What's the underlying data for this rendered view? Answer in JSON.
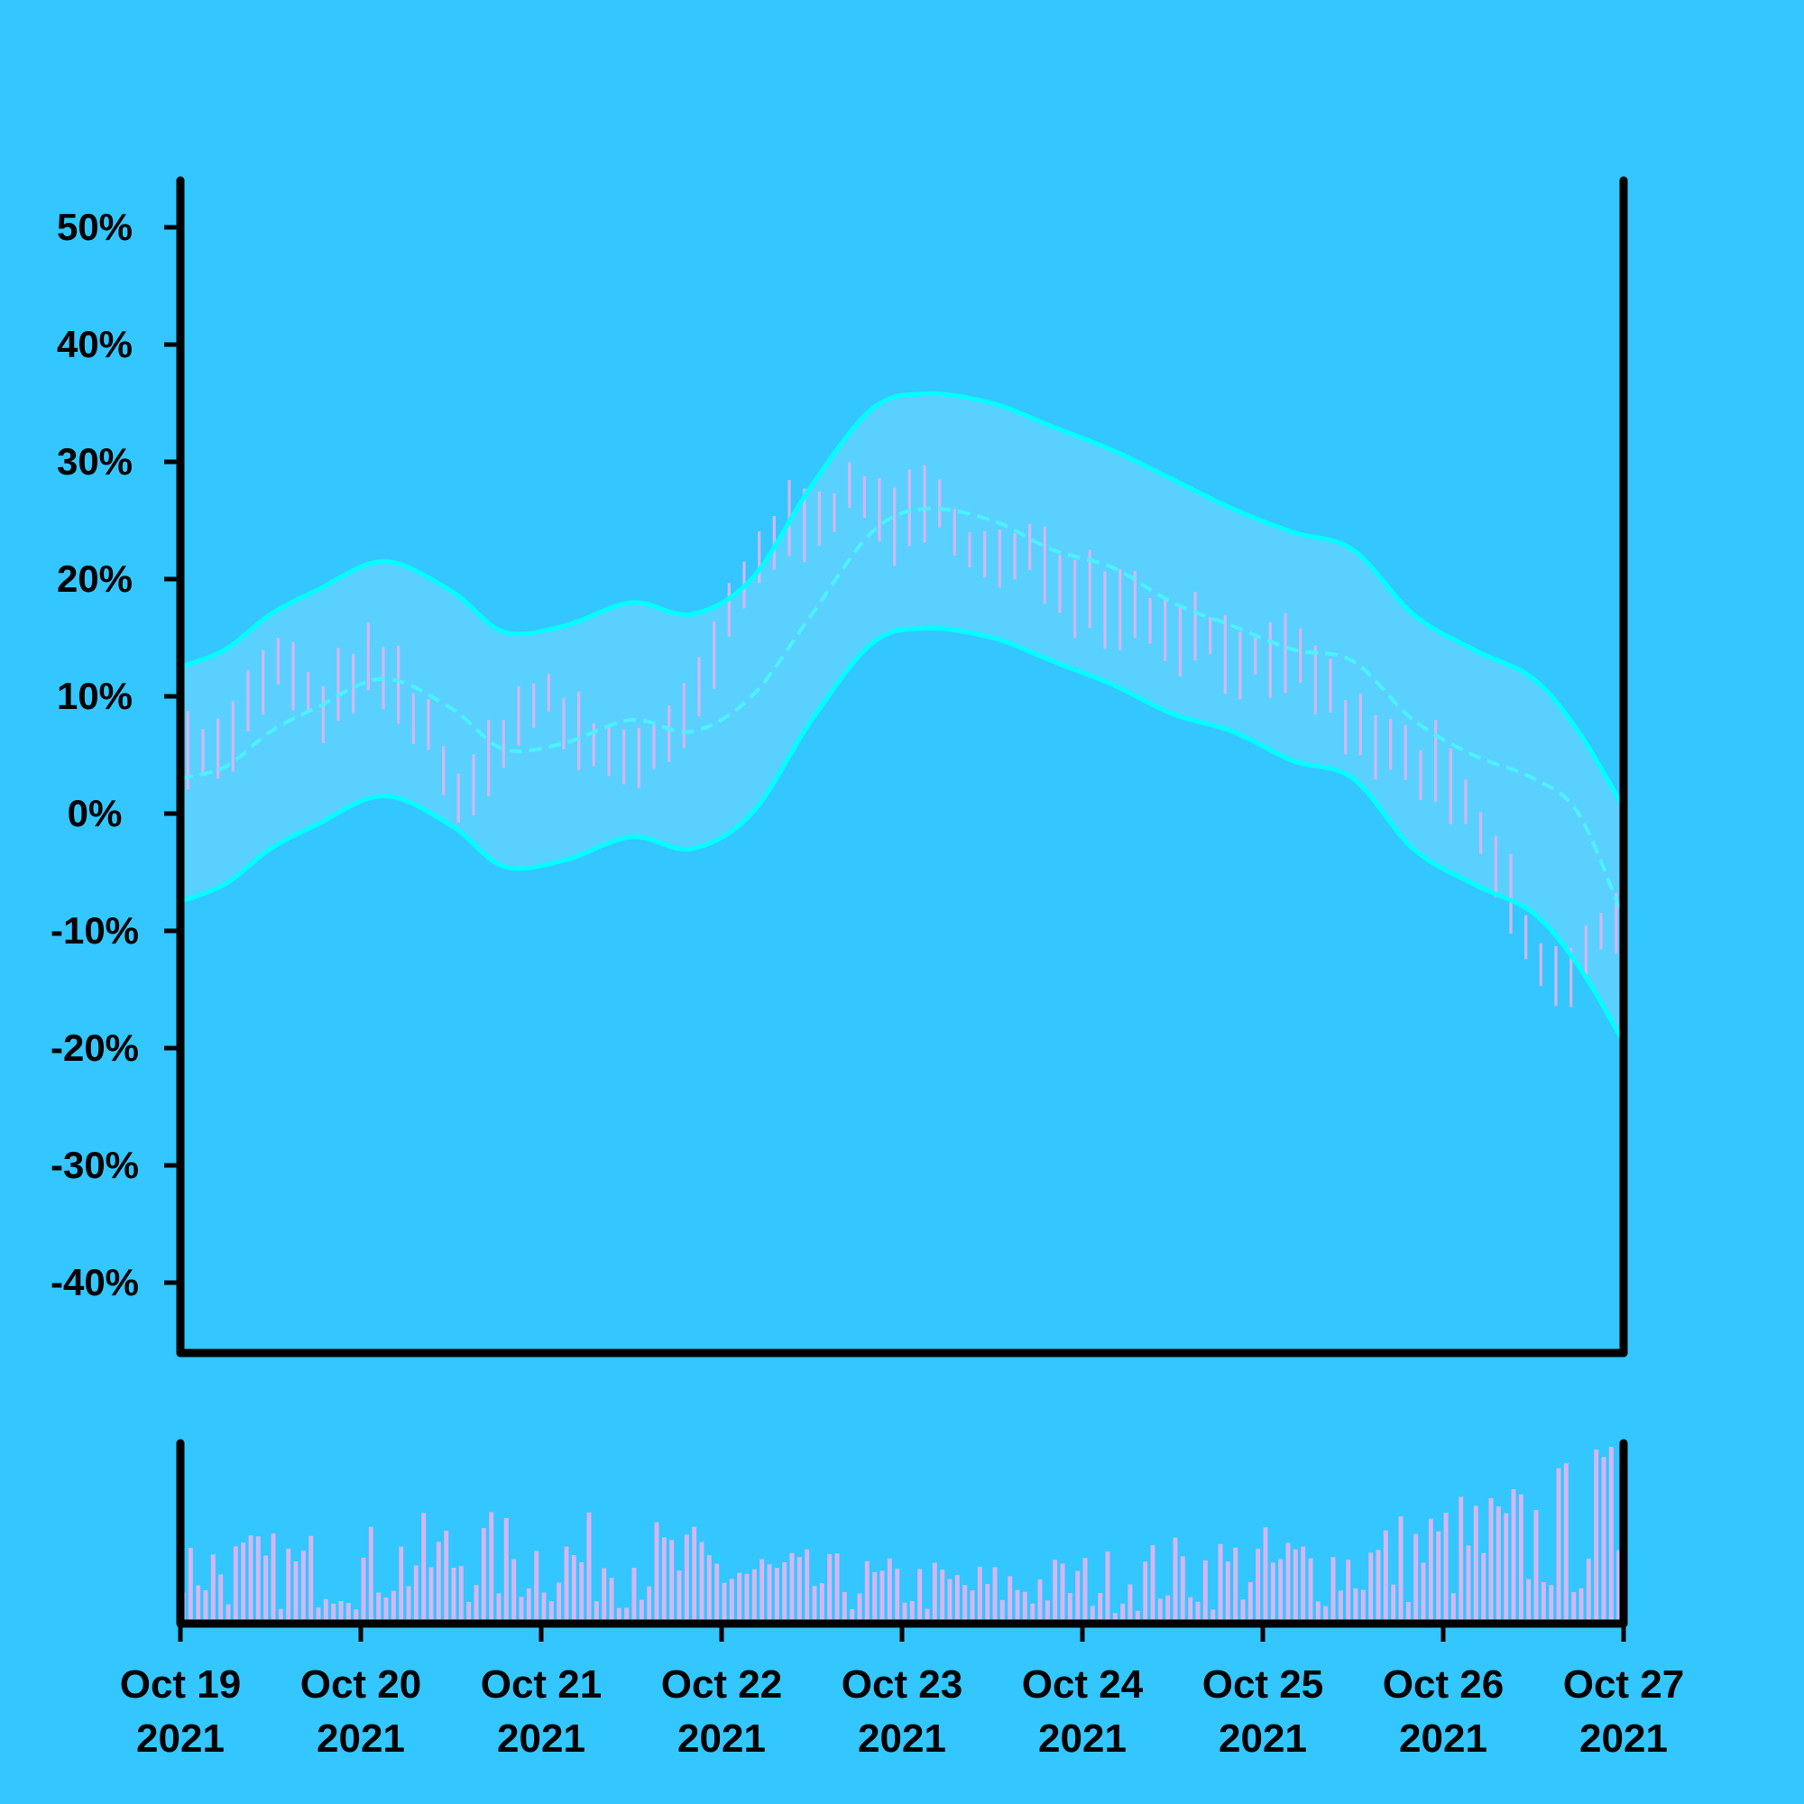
{
  "colors": {
    "background": "#33c6ff",
    "axis": "#000000",
    "band_fill": "#5ad0ff",
    "band_line": "#00ffff",
    "moving_average": "#4cf2ff",
    "price_bars": "#d5b6f2",
    "volume_bars": "#d5b6f2"
  },
  "chart_data": [
    {
      "type": "ohlc",
      "panel": "price",
      "title": "",
      "xlabel": "",
      "ylabel": "",
      "overlays": [
        "bollinger-bands-upper",
        "bollinger-bands-lower",
        "moving-average-dashed"
      ],
      "ylim": [
        -0.46,
        0.54
      ],
      "y_ticks": [
        0.5,
        0.4,
        0.3,
        0.2,
        0.1,
        0.0,
        -0.1,
        -0.2,
        -0.3,
        -0.4
      ],
      "y_tick_labels": [
        "50%",
        "40%",
        "30%",
        "20%",
        "10%",
        "0%",
        "-10%",
        "-20%",
        "-30%",
        "-40%"
      ],
      "x_range": [
        "2021-10-19",
        "2021-10-27"
      ],
      "x_ticks": [
        "2021-10-19",
        "2021-10-20",
        "2021-10-21",
        "2021-10-22",
        "2021-10-23",
        "2021-10-24",
        "2021-10-25",
        "2021-10-26",
        "2021-10-27"
      ],
      "x_tick_labels": [
        [
          "Oct 19",
          "2021"
        ],
        [
          "Oct 20",
          "2021"
        ],
        [
          "Oct 21",
          "2021"
        ],
        [
          "Oct 22",
          "2021"
        ],
        [
          "Oct 23",
          "2021"
        ],
        [
          "Oct 24",
          "2021"
        ],
        [
          "Oct 25",
          "2021"
        ],
        [
          "Oct 26",
          "2021"
        ],
        [
          "Oct 27",
          "2021"
        ]
      ],
      "bar_interval_hours": 1,
      "moving_average_points": [
        [
          "2021-10-19T00:00",
          0.03
        ],
        [
          "2021-10-19T06:00",
          0.04
        ],
        [
          "2021-10-19T12:00",
          0.07
        ],
        [
          "2021-10-19T18:00",
          0.09
        ],
        [
          "2021-10-20T03:00",
          0.115
        ],
        [
          "2021-10-20T12:00",
          0.09
        ],
        [
          "2021-10-20T19:00",
          0.055
        ],
        [
          "2021-10-21T03:00",
          0.06
        ],
        [
          "2021-10-21T12:00",
          0.08
        ],
        [
          "2021-10-21T20:00",
          0.07
        ],
        [
          "2021-10-22T04:00",
          0.1
        ],
        [
          "2021-10-22T12:00",
          0.17
        ],
        [
          "2021-10-22T20:00",
          0.24
        ],
        [
          "2021-10-23T03:00",
          0.26
        ],
        [
          "2021-10-23T12:00",
          0.25
        ],
        [
          "2021-10-23T20:00",
          0.225
        ],
        [
          "2021-10-24T04:00",
          0.21
        ],
        [
          "2021-10-24T12:00",
          0.18
        ],
        [
          "2021-10-24T20:00",
          0.16
        ],
        [
          "2021-10-25T04:00",
          0.14
        ],
        [
          "2021-10-25T12:00",
          0.13
        ],
        [
          "2021-10-25T20:00",
          0.08
        ],
        [
          "2021-10-26T04:00",
          0.05
        ],
        [
          "2021-10-26T12:00",
          0.03
        ],
        [
          "2021-10-26T18:00",
          0.0
        ],
        [
          "2021-10-27T00:00",
          -0.09
        ]
      ],
      "upper_band_points": [
        [
          "2021-10-19T00:00",
          0.125
        ],
        [
          "2021-10-19T06:00",
          0.14
        ],
        [
          "2021-10-19T12:00",
          0.17
        ],
        [
          "2021-10-19T18:00",
          0.19
        ],
        [
          "2021-10-20T03:00",
          0.215
        ],
        [
          "2021-10-20T12:00",
          0.19
        ],
        [
          "2021-10-20T19:00",
          0.155
        ],
        [
          "2021-10-21T03:00",
          0.16
        ],
        [
          "2021-10-21T12:00",
          0.18
        ],
        [
          "2021-10-21T20:00",
          0.17
        ],
        [
          "2021-10-22T04:00",
          0.2
        ],
        [
          "2021-10-22T12:00",
          0.28
        ],
        [
          "2021-10-22T20:00",
          0.345
        ],
        [
          "2021-10-23T03:00",
          0.358
        ],
        [
          "2021-10-23T12:00",
          0.35
        ],
        [
          "2021-10-23T20:00",
          0.33
        ],
        [
          "2021-10-24T04:00",
          0.31
        ],
        [
          "2021-10-24T12:00",
          0.285
        ],
        [
          "2021-10-24T20:00",
          0.26
        ],
        [
          "2021-10-25T04:00",
          0.24
        ],
        [
          "2021-10-25T12:00",
          0.225
        ],
        [
          "2021-10-25T20:00",
          0.17
        ],
        [
          "2021-10-26T04:00",
          0.14
        ],
        [
          "2021-10-26T12:00",
          0.115
        ],
        [
          "2021-10-26T18:00",
          0.07
        ],
        [
          "2021-10-27T00:00",
          0.005
        ]
      ],
      "lower_band_points": [
        [
          "2021-10-19T00:00",
          -0.075
        ],
        [
          "2021-10-19T06:00",
          -0.06
        ],
        [
          "2021-10-19T12:00",
          -0.03
        ],
        [
          "2021-10-19T18:00",
          -0.01
        ],
        [
          "2021-10-20T03:00",
          0.015
        ],
        [
          "2021-10-20T12:00",
          -0.01
        ],
        [
          "2021-10-20T19:00",
          -0.045
        ],
        [
          "2021-10-21T03:00",
          -0.04
        ],
        [
          "2021-10-21T12:00",
          -0.02
        ],
        [
          "2021-10-21T20:00",
          -0.03
        ],
        [
          "2021-10-22T04:00",
          0.0
        ],
        [
          "2021-10-22T12:00",
          0.08
        ],
        [
          "2021-10-22T20:00",
          0.145
        ],
        [
          "2021-10-23T03:00",
          0.158
        ],
        [
          "2021-10-23T12:00",
          0.15
        ],
        [
          "2021-10-23T20:00",
          0.13
        ],
        [
          "2021-10-24T04:00",
          0.11
        ],
        [
          "2021-10-24T12:00",
          0.085
        ],
        [
          "2021-10-24T20:00",
          0.07
        ],
        [
          "2021-10-25T04:00",
          0.045
        ],
        [
          "2021-10-25T12:00",
          0.03
        ],
        [
          "2021-10-25T20:00",
          -0.03
        ],
        [
          "2021-10-26T04:00",
          -0.06
        ],
        [
          "2021-10-26T12:00",
          -0.085
        ],
        [
          "2021-10-26T18:00",
          -0.13
        ],
        [
          "2021-10-27T00:00",
          -0.195
        ]
      ],
      "price_path_points": [
        [
          "2021-10-19T00:00",
          0.07
        ],
        [
          "2021-10-19T05:00",
          0.05
        ],
        [
          "2021-10-19T10:00",
          0.1
        ],
        [
          "2021-10-19T14:00",
          0.13
        ],
        [
          "2021-10-19T19:00",
          0.08
        ],
        [
          "2021-10-20T00:00",
          0.13
        ],
        [
          "2021-10-20T05:00",
          0.1
        ],
        [
          "2021-10-20T10:00",
          0.06
        ],
        [
          "2021-10-20T14:00",
          0.0
        ],
        [
          "2021-10-20T19:00",
          0.07
        ],
        [
          "2021-10-21T00:00",
          0.1
        ],
        [
          "2021-10-21T06:00",
          0.06
        ],
        [
          "2021-10-21T12:00",
          0.05
        ],
        [
          "2021-10-21T18:00",
          0.06
        ],
        [
          "2021-10-22T00:00",
          0.15
        ],
        [
          "2021-10-22T06:00",
          0.23
        ],
        [
          "2021-10-22T12:00",
          0.26
        ],
        [
          "2021-10-22T18:00",
          0.27
        ],
        [
          "2021-10-23T00:00",
          0.25
        ],
        [
          "2021-10-23T06:00",
          0.26
        ],
        [
          "2021-10-23T12:00",
          0.21
        ],
        [
          "2021-10-23T18:00",
          0.22
        ],
        [
          "2021-10-24T00:00",
          0.19
        ],
        [
          "2021-10-24T06:00",
          0.18
        ],
        [
          "2021-10-24T12:00",
          0.16
        ],
        [
          "2021-10-24T18:00",
          0.15
        ],
        [
          "2021-10-25T00:00",
          0.12
        ],
        [
          "2021-10-25T06:00",
          0.13
        ],
        [
          "2021-10-25T12:00",
          0.07
        ],
        [
          "2021-10-25T18:00",
          0.05
        ],
        [
          "2021-10-26T00:00",
          0.03
        ],
        [
          "2021-10-26T06:00",
          -0.03
        ],
        [
          "2021-10-26T12:00",
          -0.12
        ],
        [
          "2021-10-26T16:00",
          -0.15
        ],
        [
          "2021-10-27T00:00",
          -0.08
        ]
      ],
      "bar_half_range": 0.025,
      "bar_noise": 0.012
    },
    {
      "type": "bar",
      "panel": "volume",
      "title": "",
      "ylabel": "",
      "y_ticks": [],
      "ylim": [
        0,
        1
      ],
      "bar_interval_hours": 1,
      "volume_level_points": [
        [
          "2021-10-19T00:00",
          0.3
        ],
        [
          "2021-10-19T12:00",
          0.28
        ],
        [
          "2021-10-20T00:00",
          0.3
        ],
        [
          "2021-10-20T12:00",
          0.35
        ],
        [
          "2021-10-21T00:00",
          0.33
        ],
        [
          "2021-10-21T12:00",
          0.34
        ],
        [
          "2021-10-22T00:00",
          0.28
        ],
        [
          "2021-10-22T12:00",
          0.22
        ],
        [
          "2021-10-23T00:00",
          0.2
        ],
        [
          "2021-10-23T12:00",
          0.19
        ],
        [
          "2021-10-24T00:00",
          0.22
        ],
        [
          "2021-10-24T12:00",
          0.27
        ],
        [
          "2021-10-25T00:00",
          0.3
        ],
        [
          "2021-10-25T12:00",
          0.3
        ],
        [
          "2021-10-26T00:00",
          0.4
        ],
        [
          "2021-10-26T12:00",
          0.45
        ],
        [
          "2021-10-27T00:00",
          0.6
        ]
      ]
    }
  ]
}
